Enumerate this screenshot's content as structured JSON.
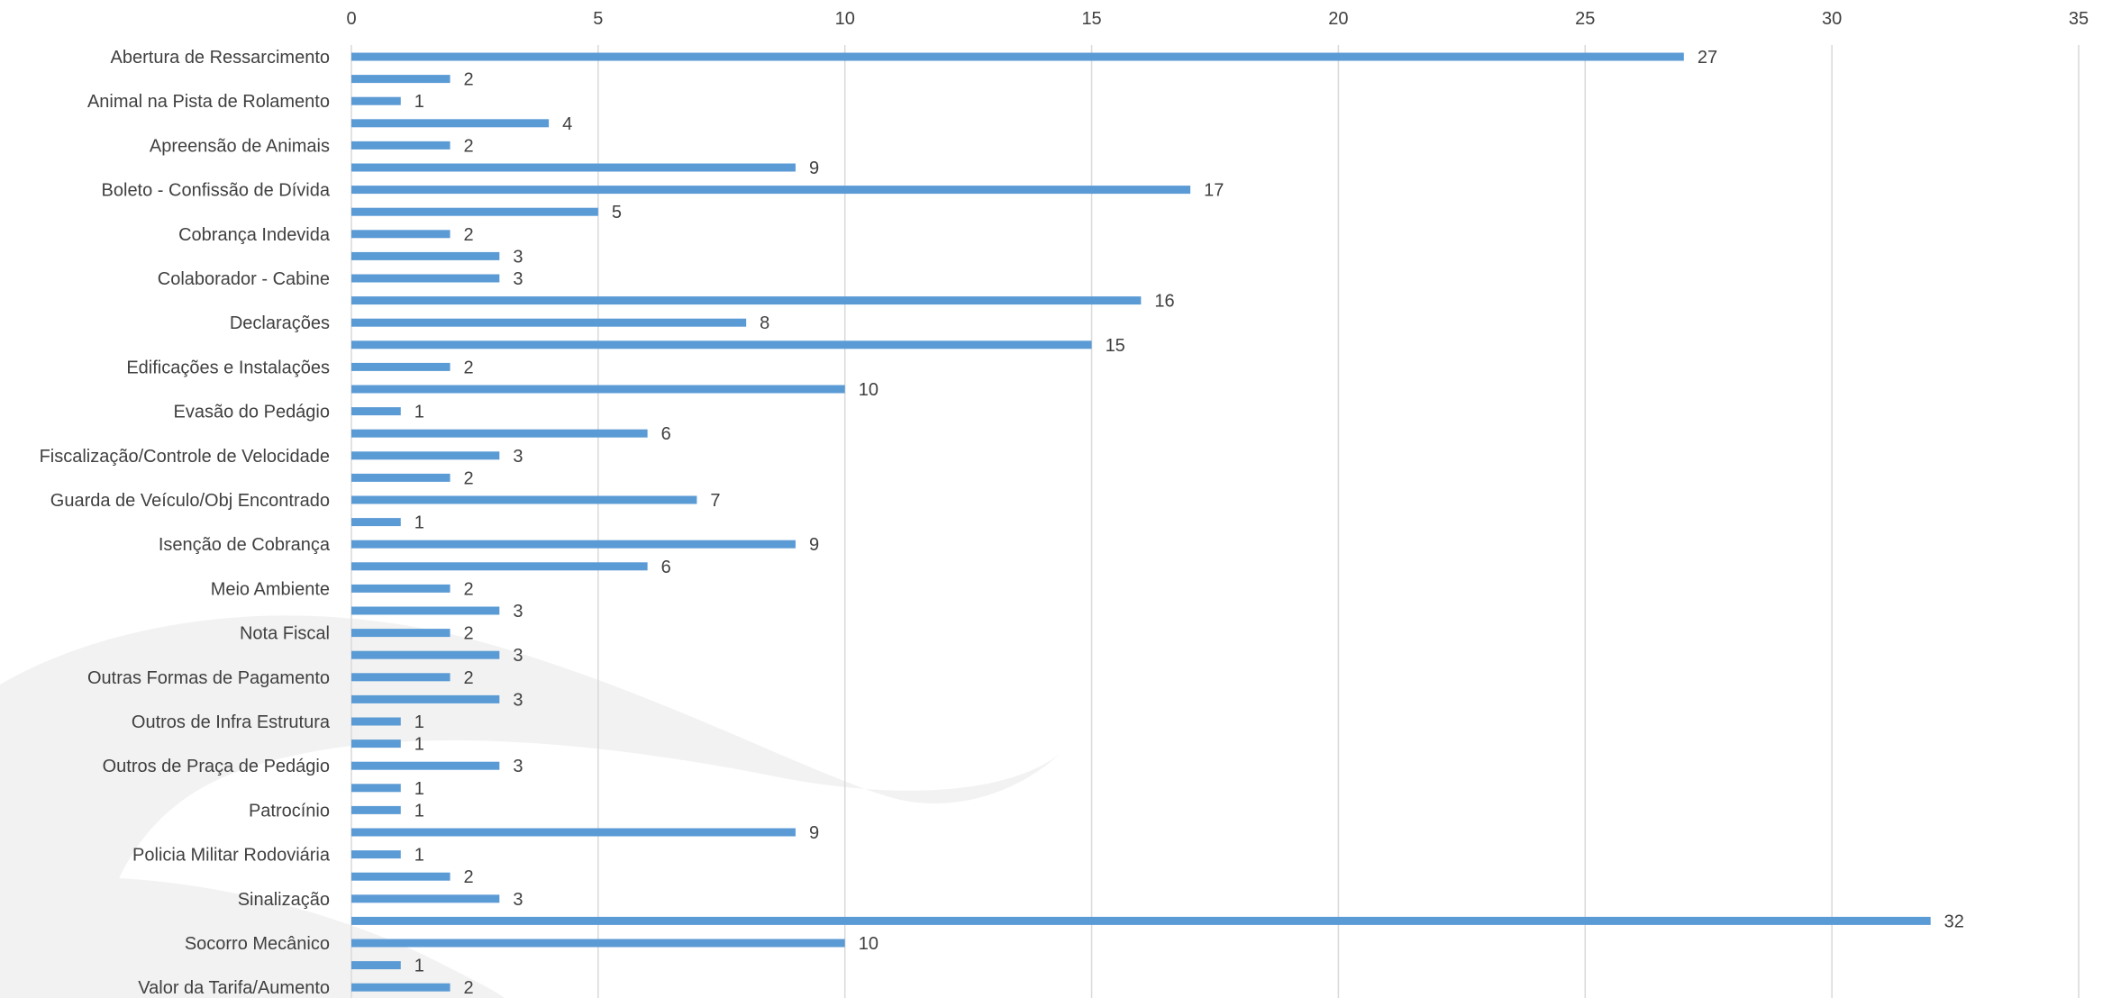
{
  "chart_data": {
    "type": "bar",
    "orientation": "horizontal",
    "title": "",
    "xlabel": "",
    "ylabel": "",
    "xlim": [
      0,
      35
    ],
    "x_ticks": [
      0,
      5,
      10,
      15,
      20,
      25,
      30,
      35
    ],
    "x_axis_position": "top",
    "grid": true,
    "legend": "none",
    "bar_color": "#5B9BD5",
    "label_color": "#404040",
    "bars": [
      {
        "label": "Abertura de Ressarcimento",
        "value": 27
      },
      {
        "label": "",
        "value": 2
      },
      {
        "label": "Animal na Pista de Rolamento",
        "value": 1
      },
      {
        "label": "",
        "value": 4
      },
      {
        "label": "Apreensão de Animais",
        "value": 2
      },
      {
        "label": "",
        "value": 9
      },
      {
        "label": "Boleto - Confissão de Dívida",
        "value": 17
      },
      {
        "label": "",
        "value": 5
      },
      {
        "label": "Cobrança Indevida",
        "value": 2
      },
      {
        "label": "",
        "value": 3
      },
      {
        "label": "Colaborador - Cabine",
        "value": 3
      },
      {
        "label": "",
        "value": 16
      },
      {
        "label": "Declarações",
        "value": 8
      },
      {
        "label": "",
        "value": 15
      },
      {
        "label": "Edificações e Instalações",
        "value": 2
      },
      {
        "label": "",
        "value": 10
      },
      {
        "label": "Evasão do Pedágio",
        "value": 1
      },
      {
        "label": "",
        "value": 6
      },
      {
        "label": "Fiscalização/Controle de Velocidade",
        "value": 3
      },
      {
        "label": "",
        "value": 2
      },
      {
        "label": "Guarda de Veículo/Obj Encontrado",
        "value": 7
      },
      {
        "label": "",
        "value": 1
      },
      {
        "label": "Isenção de Cobrança",
        "value": 9
      },
      {
        "label": "",
        "value": 6
      },
      {
        "label": "Meio Ambiente",
        "value": 2
      },
      {
        "label": "",
        "value": 3
      },
      {
        "label": "Nota Fiscal",
        "value": 2
      },
      {
        "label": "",
        "value": 3
      },
      {
        "label": "Outras Formas de Pagamento",
        "value": 2
      },
      {
        "label": "",
        "value": 3
      },
      {
        "label": "Outros de Infra Estrutura",
        "value": 1
      },
      {
        "label": "",
        "value": 1
      },
      {
        "label": "Outros de Praça de Pedágio",
        "value": 3
      },
      {
        "label": "",
        "value": 1
      },
      {
        "label": "Patrocínio",
        "value": 1
      },
      {
        "label": "",
        "value": 9
      },
      {
        "label": "Policia Militar Rodoviária",
        "value": 1
      },
      {
        "label": "",
        "value": 2
      },
      {
        "label": "Sinalização",
        "value": 3
      },
      {
        "label": "",
        "value": 32
      },
      {
        "label": "Socorro Mecânico",
        "value": 10
      },
      {
        "label": "",
        "value": 1
      },
      {
        "label": "Valor da Tarifa/Aumento",
        "value": 2
      }
    ]
  }
}
